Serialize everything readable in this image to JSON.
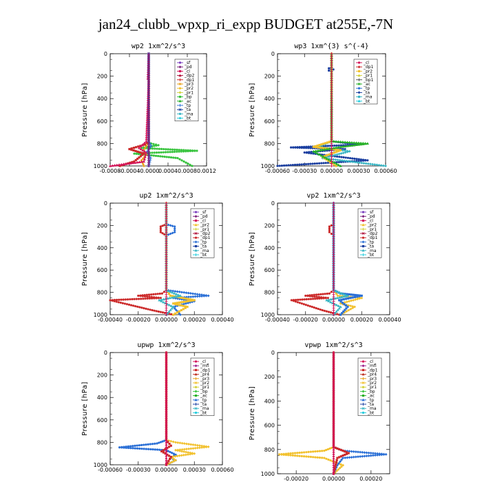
{
  "figure_title": "jan24_clubb_wpxp_ri_expp  BUDGET at255E,-7N",
  "colors": {
    "_sf": "#7b3fbf",
    "_pd": "#7a1f7a",
    "_cl": "#d4145a",
    "_dp2": "#b0103a",
    "_dp1": "#cc2a2a",
    "_pr3": "#e8a21b",
    "_pr2": "#f2c12e",
    "_pr1": "#d2d23a",
    "_bp": "#39c43f",
    "_ac": "#27b027",
    "_tp": "#2a6fd6",
    "_ta": "#1b3fa0",
    "_ma": "#3ab6c4",
    "_bt": "#22ccdd",
    "_mfl": "#9b1b8a",
    "_pr4": "#c0392b"
  },
  "chart_data": [
    {
      "type": "line",
      "title": "wp2  1xm^2/s^3",
      "ylabel": "Pressure [hPa]",
      "ylim": [
        1000,
        0
      ],
      "xlim": [
        -0.0008,
        0.0012
      ],
      "xticks": [
        "-0.0008",
        "-0.0004",
        "-0.0000",
        "0.0004",
        "0.0008",
        "0.0012"
      ],
      "yticks": [
        "0",
        "200",
        "400",
        "600",
        "800",
        "1000"
      ],
      "legend": [
        "_sf",
        "_pd",
        "_cl",
        "_dp2",
        "_dp1",
        "_pr3",
        "_pr2",
        "_pr1",
        "_bp",
        "_ac",
        "_tp",
        "_ta",
        "_ma",
        "_bt"
      ],
      "legend_position": "top-right",
      "series": [
        {
          "name": "_bp",
          "x": [
            0,
            0,
            5e-05,
            0.0002,
            -0.00015,
            0.001,
            -0.0003,
            0.0006,
            0.0009
          ],
          "y": [
            0,
            780,
            800,
            815,
            840,
            865,
            890,
            930,
            1000
          ]
        },
        {
          "name": "_pr3",
          "x": [
            0,
            0,
            -5e-05,
            -0.0001,
            -5e-05,
            -0.00015,
            -0.0001
          ],
          "y": [
            0,
            780,
            820,
            860,
            900,
            950,
            1000
          ]
        },
        {
          "name": "_dp1",
          "x": [
            0,
            0,
            -8e-05,
            -0.0004,
            -0.0001,
            -0.0003,
            -0.0006
          ],
          "y": [
            0,
            780,
            810,
            850,
            890,
            960,
            1000
          ]
        },
        {
          "name": "_cl",
          "x": [
            0,
            -2e-05,
            0,
            -5e-05,
            -0.0002,
            -5e-05,
            -0.0001,
            -0.0008
          ],
          "y": [
            0,
            220,
            240,
            780,
            840,
            880,
            960,
            1000
          ]
        },
        {
          "name": "_tp",
          "x": [
            0,
            0,
            5e-05,
            -3e-05,
            4e-05,
            0
          ],
          "y": [
            0,
            780,
            820,
            870,
            930,
            1000
          ]
        },
        {
          "name": "_pd",
          "x": [
            0,
            0,
            0,
            0
          ],
          "y": [
            0,
            400,
            800,
            1000
          ]
        }
      ]
    },
    {
      "type": "line",
      "title": "wp3  1xm^{3} s^{-4}",
      "ylabel": "Pressure [hPa]",
      "ylim": [
        1000,
        0
      ],
      "xlim": [
        -0.0006,
        0.0006
      ],
      "xticks": [
        "-0.00060",
        "-0.00030",
        "0.00000",
        "0.00030",
        "0.00060"
      ],
      "yticks": [
        "0",
        "200",
        "400",
        "600",
        "800",
        "1000"
      ],
      "legend": [
        "_cl",
        "_dp1",
        "_pr2",
        "_pr1",
        "_bp1",
        "_ac",
        "_tp",
        "_ta",
        "_ma",
        "_bt"
      ],
      "legend_position": "top-right",
      "series": [
        {
          "name": "_ta",
          "x": [
            0,
            0,
            -3e-05,
            2e-05,
            -3e-05,
            0,
            0,
            0.0003,
            -0.00045,
            0.00015,
            -0.0003,
            0.0004,
            -0.0006
          ],
          "y": [
            0,
            120,
            130,
            140,
            150,
            160,
            780,
            810,
            835,
            850,
            880,
            950,
            1000
          ]
        },
        {
          "name": "_ma",
          "x": [
            0,
            0,
            -0.00015,
            0.0002,
            -0.0001,
            0.0006
          ],
          "y": [
            0,
            780,
            830,
            870,
            930,
            1000
          ]
        },
        {
          "name": "_pr2",
          "x": [
            0,
            0,
            -0.0002,
            0.0001,
            -0.0001,
            5e-05
          ],
          "y": [
            0,
            780,
            830,
            860,
            920,
            1000
          ]
        },
        {
          "name": "_ac",
          "x": [
            0,
            0,
            0.0004,
            0.0001,
            -0.0002,
            0.0001
          ],
          "y": [
            0,
            780,
            800,
            830,
            870,
            1000
          ]
        },
        {
          "name": "_cl",
          "x": [
            0,
            0,
            0,
            0
          ],
          "y": [
            0,
            400,
            800,
            1000
          ]
        }
      ]
    },
    {
      "type": "line",
      "title": "up2  1xm^2/s^3",
      "ylabel": "Pressure [hPa]",
      "ylim": [
        1000,
        0
      ],
      "xlim": [
        -0.0004,
        0.0004
      ],
      "xticks": [
        "-0.00040",
        "-0.00020",
        "0.00000",
        "0.00020",
        "0.00040"
      ],
      "yticks": [
        "0",
        "200",
        "400",
        "600",
        "800",
        "1000"
      ],
      "legend": [
        "_sf",
        "_pd",
        "_cl",
        "_pr2",
        "_pr1",
        "_dp2",
        "_dp1",
        "_tp",
        "_ta",
        "_ma",
        "_bt"
      ],
      "legend_position": "top-right",
      "series": [
        {
          "name": "_dp1",
          "x": [
            0,
            0,
            -4e-05,
            -4e-05,
            0,
            0,
            -3e-05,
            -0.0002,
            -4e-05,
            -0.0004,
            -0.0001,
            5e-05
          ],
          "y": [
            0,
            190,
            210,
            260,
            290,
            780,
            810,
            830,
            850,
            870,
            960,
            1000
          ]
        },
        {
          "name": "_tp",
          "x": [
            0,
            0,
            6e-05,
            6e-05,
            0,
            0,
            0.0003,
            5e-05,
            0.0002,
            5e-05,
            0.0001
          ],
          "y": [
            0,
            190,
            210,
            260,
            290,
            780,
            830,
            850,
            880,
            930,
            1000
          ]
        },
        {
          "name": "_pr2",
          "x": [
            0,
            0,
            3e-05,
            0.0002,
            5e-05,
            0.00015,
            5e-05
          ],
          "y": [
            0,
            780,
            830,
            870,
            900,
            930,
            1000
          ]
        },
        {
          "name": "_ma",
          "x": [
            0,
            0,
            0.0001,
            -5e-05,
            5e-05,
            0
          ],
          "y": [
            0,
            780,
            830,
            870,
            930,
            1000
          ]
        },
        {
          "name": "_cl",
          "x": [
            0,
            0,
            0,
            0
          ],
          "y": [
            0,
            400,
            800,
            1000
          ]
        }
      ]
    },
    {
      "type": "line",
      "title": "vp2  1xm^2/s^3",
      "ylabel": "Pressure [hPa]",
      "ylim": [
        1000,
        0
      ],
      "xlim": [
        -0.0004,
        0.0004
      ],
      "xticks": [
        "-0.00040",
        "-0.00020",
        "0.00000",
        "0.00020",
        "0.00040"
      ],
      "yticks": [
        "0",
        "200",
        "400",
        "600",
        "800",
        "1000"
      ],
      "legend": [
        "_sf",
        "_pd",
        "_cl",
        "_pr2",
        "_pr1",
        "_dp2",
        "_dp1",
        "_tp",
        "_ta",
        "_ma",
        "_bt"
      ],
      "legend_position": "top-right",
      "series": [
        {
          "name": "_dp1",
          "x": [
            0,
            0,
            -3e-05,
            -3e-05,
            0,
            0,
            -3e-05,
            -0.0002,
            -4e-05,
            -0.0003,
            -8e-05,
            4e-05
          ],
          "y": [
            0,
            190,
            210,
            260,
            290,
            780,
            810,
            830,
            850,
            870,
            960,
            1000
          ]
        },
        {
          "name": "_pr2",
          "x": [
            0,
            0,
            3e-05,
            0.0002,
            5e-05,
            0.00015,
            5e-05
          ],
          "y": [
            0,
            780,
            830,
            850,
            900,
            930,
            1000
          ]
        },
        {
          "name": "_tp",
          "x": [
            0,
            0,
            5e-05,
            0.0002,
            4e-05,
            0.0001,
            5e-05
          ],
          "y": [
            0,
            780,
            810,
            830,
            870,
            930,
            1000
          ]
        },
        {
          "name": "_ma",
          "x": [
            0,
            0,
            0.0001,
            -5e-05,
            5e-05,
            0
          ],
          "y": [
            0,
            780,
            830,
            870,
            930,
            1000
          ]
        },
        {
          "name": "_cl",
          "x": [
            0,
            0,
            0,
            0
          ],
          "y": [
            0,
            400,
            800,
            1000
          ]
        }
      ]
    },
    {
      "type": "line",
      "title": "upwp  1xm^2/s^3",
      "ylabel": "Pressure [hPa]",
      "ylim": [
        1000,
        0
      ],
      "xlim": [
        -0.0006,
        0.0006
      ],
      "xticks": [
        "-0.00060",
        "-0.00030",
        "0.00000",
        "0.00030",
        "0.00060"
      ],
      "yticks": [
        "0",
        "200",
        "400",
        "600",
        "800",
        "1000"
      ],
      "legend": [
        "_cl",
        "_mfl",
        "_dp1",
        "_pr4",
        "_pr3",
        "_pr2",
        "_pr1",
        "_bp",
        "_ac",
        "_tp",
        "_ta",
        "_ma",
        "_bt"
      ],
      "legend_position": "top-right",
      "series": [
        {
          "name": "_tp",
          "x": [
            0,
            0,
            -0.0001,
            -0.0005,
            0,
            0.0001,
            5e-05,
            0.0001,
            0
          ],
          "y": [
            0,
            780,
            810,
            845,
            870,
            910,
            940,
            960,
            1000
          ]
        },
        {
          "name": "_pr2",
          "x": [
            0,
            0,
            0.0001,
            0.00045,
            0.0001,
            0.0003,
            5e-05,
            0.0001,
            0
          ],
          "y": [
            0,
            780,
            800,
            840,
            870,
            900,
            930,
            960,
            1000
          ]
        },
        {
          "name": "_dp1",
          "x": [
            0,
            0,
            5e-05,
            -5e-05,
            5e-05,
            0
          ],
          "y": [
            0,
            780,
            830,
            880,
            930,
            1000
          ]
        },
        {
          "name": "_cl",
          "x": [
            0,
            0,
            0,
            0
          ],
          "y": [
            0,
            400,
            800,
            1000
          ]
        }
      ]
    },
    {
      "type": "line",
      "title": "vpwp  1xm^2/s^3",
      "ylabel": "Pressure [hPa]",
      "ylim": [
        1000,
        0
      ],
      "xlim": [
        -0.0003,
        0.0003
      ],
      "xticks": [
        "-0.00020",
        "0.00000",
        "0.00020"
      ],
      "yticks": [
        "0",
        "200",
        "400",
        "600",
        "800",
        "1000"
      ],
      "legend": [
        "_cl",
        "_mfl",
        "_dp1",
        "_pr4",
        "_pr3",
        "_pr2",
        "_pr1",
        "_bp",
        "_ac",
        "_tp",
        "_ta",
        "_ma",
        "_bt"
      ],
      "legend_position": "top-right",
      "series": [
        {
          "name": "_pr2",
          "x": [
            0,
            0,
            -5e-05,
            -0.00029,
            -5e-05,
            5e-05,
            0
          ],
          "y": [
            0,
            780,
            810,
            840,
            870,
            930,
            1000
          ]
        },
        {
          "name": "_tp",
          "x": [
            0,
            0,
            5e-05,
            0.00028,
            5e-05,
            2e-05,
            0
          ],
          "y": [
            0,
            780,
            810,
            840,
            870,
            930,
            1000
          ]
        },
        {
          "name": "_dp1",
          "x": [
            0,
            0,
            5e-05,
            8e-05,
            2e-05,
            0
          ],
          "y": [
            0,
            780,
            810,
            830,
            870,
            1000
          ]
        },
        {
          "name": "_cl",
          "x": [
            0,
            0,
            0,
            0
          ],
          "y": [
            0,
            400,
            800,
            1000
          ]
        }
      ]
    }
  ]
}
